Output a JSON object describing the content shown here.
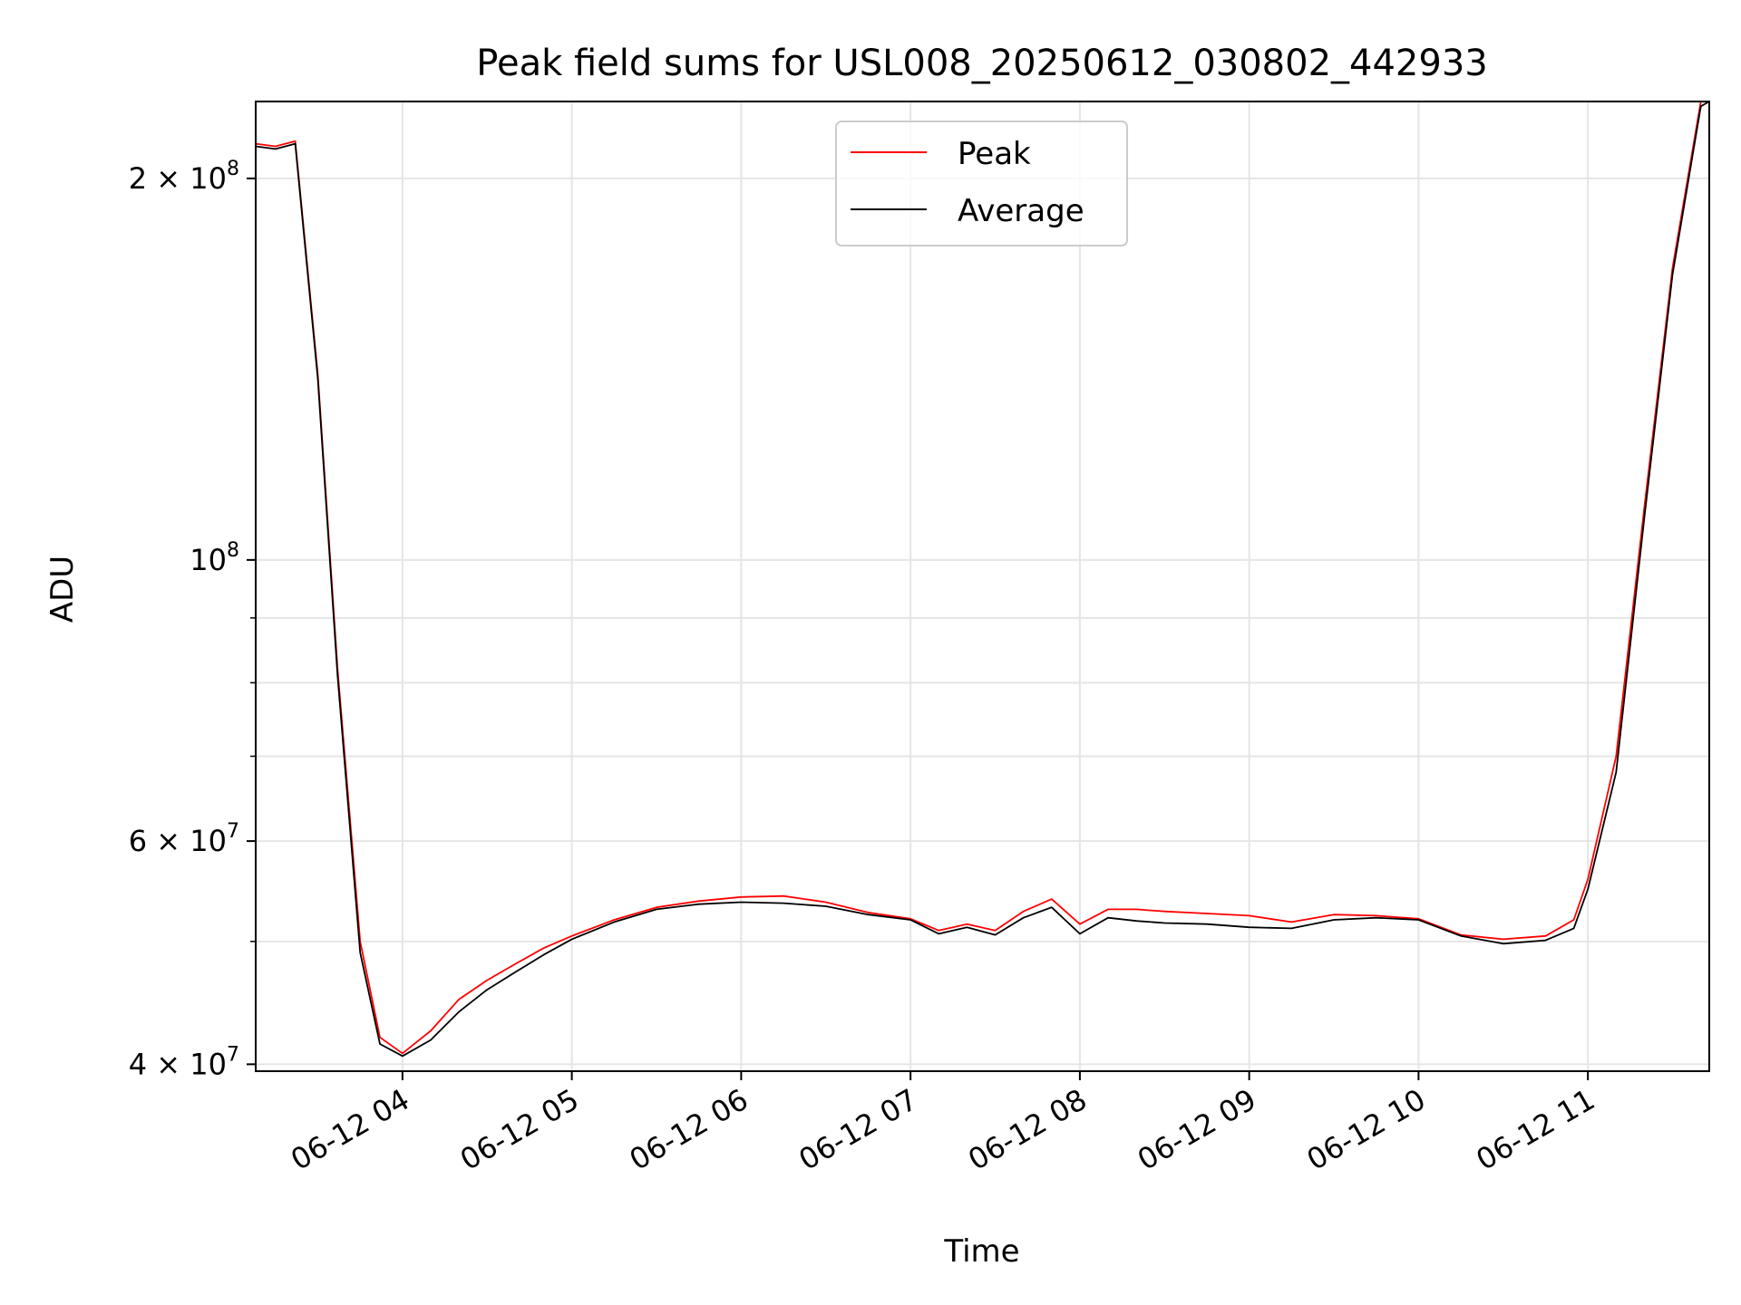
{
  "chart_data": {
    "type": "line",
    "title": "Peak field sums for USL008_20250612_030802_442933",
    "xlabel": "Time",
    "ylabel": "ADU",
    "yscale": "log",
    "grid": true,
    "legend_position": "top-center",
    "xlim": [
      "2025-06-12 03:08",
      "2025-06-12 11:43"
    ],
    "ylim": [
      39500000,
      230000000
    ],
    "x_ticks": [
      {
        "label": "06-12 04",
        "value": "2025-06-12 04:00"
      },
      {
        "label": "06-12 05",
        "value": "2025-06-12 05:00"
      },
      {
        "label": "06-12 06",
        "value": "2025-06-12 06:00"
      },
      {
        "label": "06-12 07",
        "value": "2025-06-12 07:00"
      },
      {
        "label": "06-12 08",
        "value": "2025-06-12 08:00"
      },
      {
        "label": "06-12 09",
        "value": "2025-06-12 09:00"
      },
      {
        "label": "06-12 10",
        "value": "2025-06-12 10:00"
      },
      {
        "label": "06-12 11",
        "value": "2025-06-12 11:00"
      }
    ],
    "y_ticks": [
      {
        "mantissa": "4 × 10",
        "exp": "7",
        "value": 40000000
      },
      {
        "mantissa": "6 × 10",
        "exp": "7",
        "value": 60000000
      },
      {
        "mantissa": "10",
        "exp": "8",
        "value": 100000000
      },
      {
        "mantissa": "2 × 10",
        "exp": "8",
        "value": 200000000
      }
    ],
    "y_minor_ticks": [
      50000000,
      70000000,
      80000000,
      90000000
    ],
    "series": [
      {
        "name": "Peak",
        "color": "#ff0000",
        "x": [
          "2025-06-12 03:08",
          "2025-06-12 03:15",
          "2025-06-12 03:22",
          "2025-06-12 03:30",
          "2025-06-12 03:37",
          "2025-06-12 03:45",
          "2025-06-12 03:52",
          "2025-06-12 04:00",
          "2025-06-12 04:10",
          "2025-06-12 04:20",
          "2025-06-12 04:30",
          "2025-06-12 04:40",
          "2025-06-12 04:50",
          "2025-06-12 05:00",
          "2025-06-12 05:15",
          "2025-06-12 05:30",
          "2025-06-12 05:45",
          "2025-06-12 06:00",
          "2025-06-12 06:15",
          "2025-06-12 06:30",
          "2025-06-12 06:45",
          "2025-06-12 07:00",
          "2025-06-12 07:10",
          "2025-06-12 07:20",
          "2025-06-12 07:30",
          "2025-06-12 07:40",
          "2025-06-12 07:50",
          "2025-06-12 08:00",
          "2025-06-12 08:10",
          "2025-06-12 08:20",
          "2025-06-12 08:30",
          "2025-06-12 08:45",
          "2025-06-12 09:00",
          "2025-06-12 09:15",
          "2025-06-12 09:30",
          "2025-06-12 09:45",
          "2025-06-12 10:00",
          "2025-06-12 10:15",
          "2025-06-12 10:30",
          "2025-06-12 10:45",
          "2025-06-12 10:55",
          "2025-06-12 11:00",
          "2025-06-12 11:10",
          "2025-06-12 11:20",
          "2025-06-12 11:30",
          "2025-06-12 11:40",
          "2025-06-12 11:43"
        ],
        "values": [
          213000000,
          212000000,
          214000000,
          140000000,
          82000000,
          50000000,
          42000000,
          40800000,
          42500000,
          45000000,
          46600000,
          48000000,
          49400000,
          50500000,
          52000000,
          53200000,
          53800000,
          54200000,
          54300000,
          53700000,
          52700000,
          52100000,
          51000000,
          51600000,
          51000000,
          52800000,
          54000000,
          51600000,
          53000000,
          53000000,
          52800000,
          52600000,
          52400000,
          51800000,
          52500000,
          52400000,
          52100000,
          50600000,
          50200000,
          50500000,
          52000000,
          56000000,
          70000000,
          110000000,
          170000000,
          230000000,
          230000000
        ]
      },
      {
        "name": "Average",
        "color": "#000000",
        "x": [
          "2025-06-12 03:08",
          "2025-06-12 03:15",
          "2025-06-12 03:22",
          "2025-06-12 03:30",
          "2025-06-12 03:37",
          "2025-06-12 03:45",
          "2025-06-12 03:52",
          "2025-06-12 04:00",
          "2025-06-12 04:10",
          "2025-06-12 04:20",
          "2025-06-12 04:30",
          "2025-06-12 04:40",
          "2025-06-12 04:50",
          "2025-06-12 05:00",
          "2025-06-12 05:15",
          "2025-06-12 05:30",
          "2025-06-12 05:45",
          "2025-06-12 06:00",
          "2025-06-12 06:15",
          "2025-06-12 06:30",
          "2025-06-12 06:45",
          "2025-06-12 07:00",
          "2025-06-12 07:10",
          "2025-06-12 07:20",
          "2025-06-12 07:30",
          "2025-06-12 07:40",
          "2025-06-12 07:50",
          "2025-06-12 08:00",
          "2025-06-12 08:10",
          "2025-06-12 08:20",
          "2025-06-12 08:30",
          "2025-06-12 08:45",
          "2025-06-12 09:00",
          "2025-06-12 09:15",
          "2025-06-12 09:30",
          "2025-06-12 09:45",
          "2025-06-12 10:00",
          "2025-06-12 10:15",
          "2025-06-12 10:30",
          "2025-06-12 10:45",
          "2025-06-12 10:55",
          "2025-06-12 11:00",
          "2025-06-12 11:10",
          "2025-06-12 11:20",
          "2025-06-12 11:30",
          "2025-06-12 11:40",
          "2025-06-12 11:43"
        ],
        "values": [
          212000000,
          211000000,
          213000000,
          139000000,
          81000000,
          49000000,
          41500000,
          40600000,
          41800000,
          44000000,
          45800000,
          47300000,
          48800000,
          50200000,
          51800000,
          53000000,
          53500000,
          53700000,
          53600000,
          53300000,
          52500000,
          52000000,
          50700000,
          51300000,
          50600000,
          52200000,
          53200000,
          50700000,
          52200000,
          51900000,
          51700000,
          51600000,
          51300000,
          51200000,
          52000000,
          52200000,
          52000000,
          50500000,
          49800000,
          50100000,
          51200000,
          55000000,
          68000000,
          108000000,
          168000000,
          228000000,
          230000000
        ]
      }
    ]
  }
}
